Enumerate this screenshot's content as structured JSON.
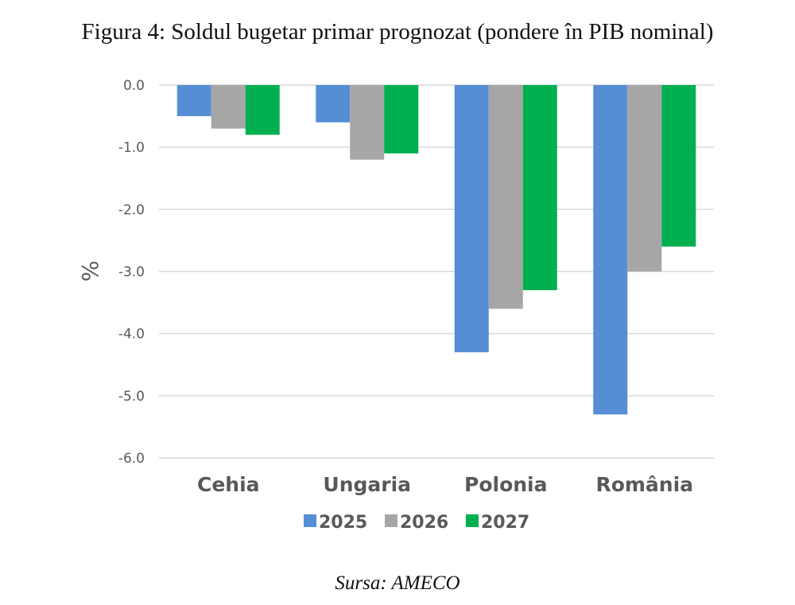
{
  "figure": {
    "title": "Figura 4: Soldul bugetar primar prognozat (pondere în PIB nominal)",
    "source": "Sursa: AMECO"
  },
  "chart_data": {
    "type": "bar",
    "title": "Figura 4: Soldul bugetar primar prognozat (pondere în PIB nominal)",
    "xlabel": "",
    "ylabel": "%",
    "categories": [
      "Cehia",
      "Ungaria",
      "Polonia",
      "România"
    ],
    "series": [
      {
        "name": "2025",
        "color": "#558ED5",
        "values": [
          -0.5,
          -0.6,
          -4.3,
          -5.3
        ]
      },
      {
        "name": "2026",
        "color": "#A6A6A6",
        "values": [
          -0.7,
          -1.2,
          -3.6,
          -3.0
        ]
      },
      {
        "name": "2027",
        "color": "#00B050",
        "values": [
          -0.8,
          -1.1,
          -3.3,
          -2.6
        ]
      }
    ],
    "ylim": [
      -6.0,
      0.0
    ],
    "yticks": [
      0.0,
      -1.0,
      -2.0,
      -3.0,
      -4.0,
      -5.0,
      -6.0
    ],
    "ytick_labels": [
      "0.0",
      "-1.0",
      "-2.0",
      "-3.0",
      "-4.0",
      "-5.0",
      "-6.0"
    ],
    "grid": true,
    "legend_position": "bottom"
  }
}
